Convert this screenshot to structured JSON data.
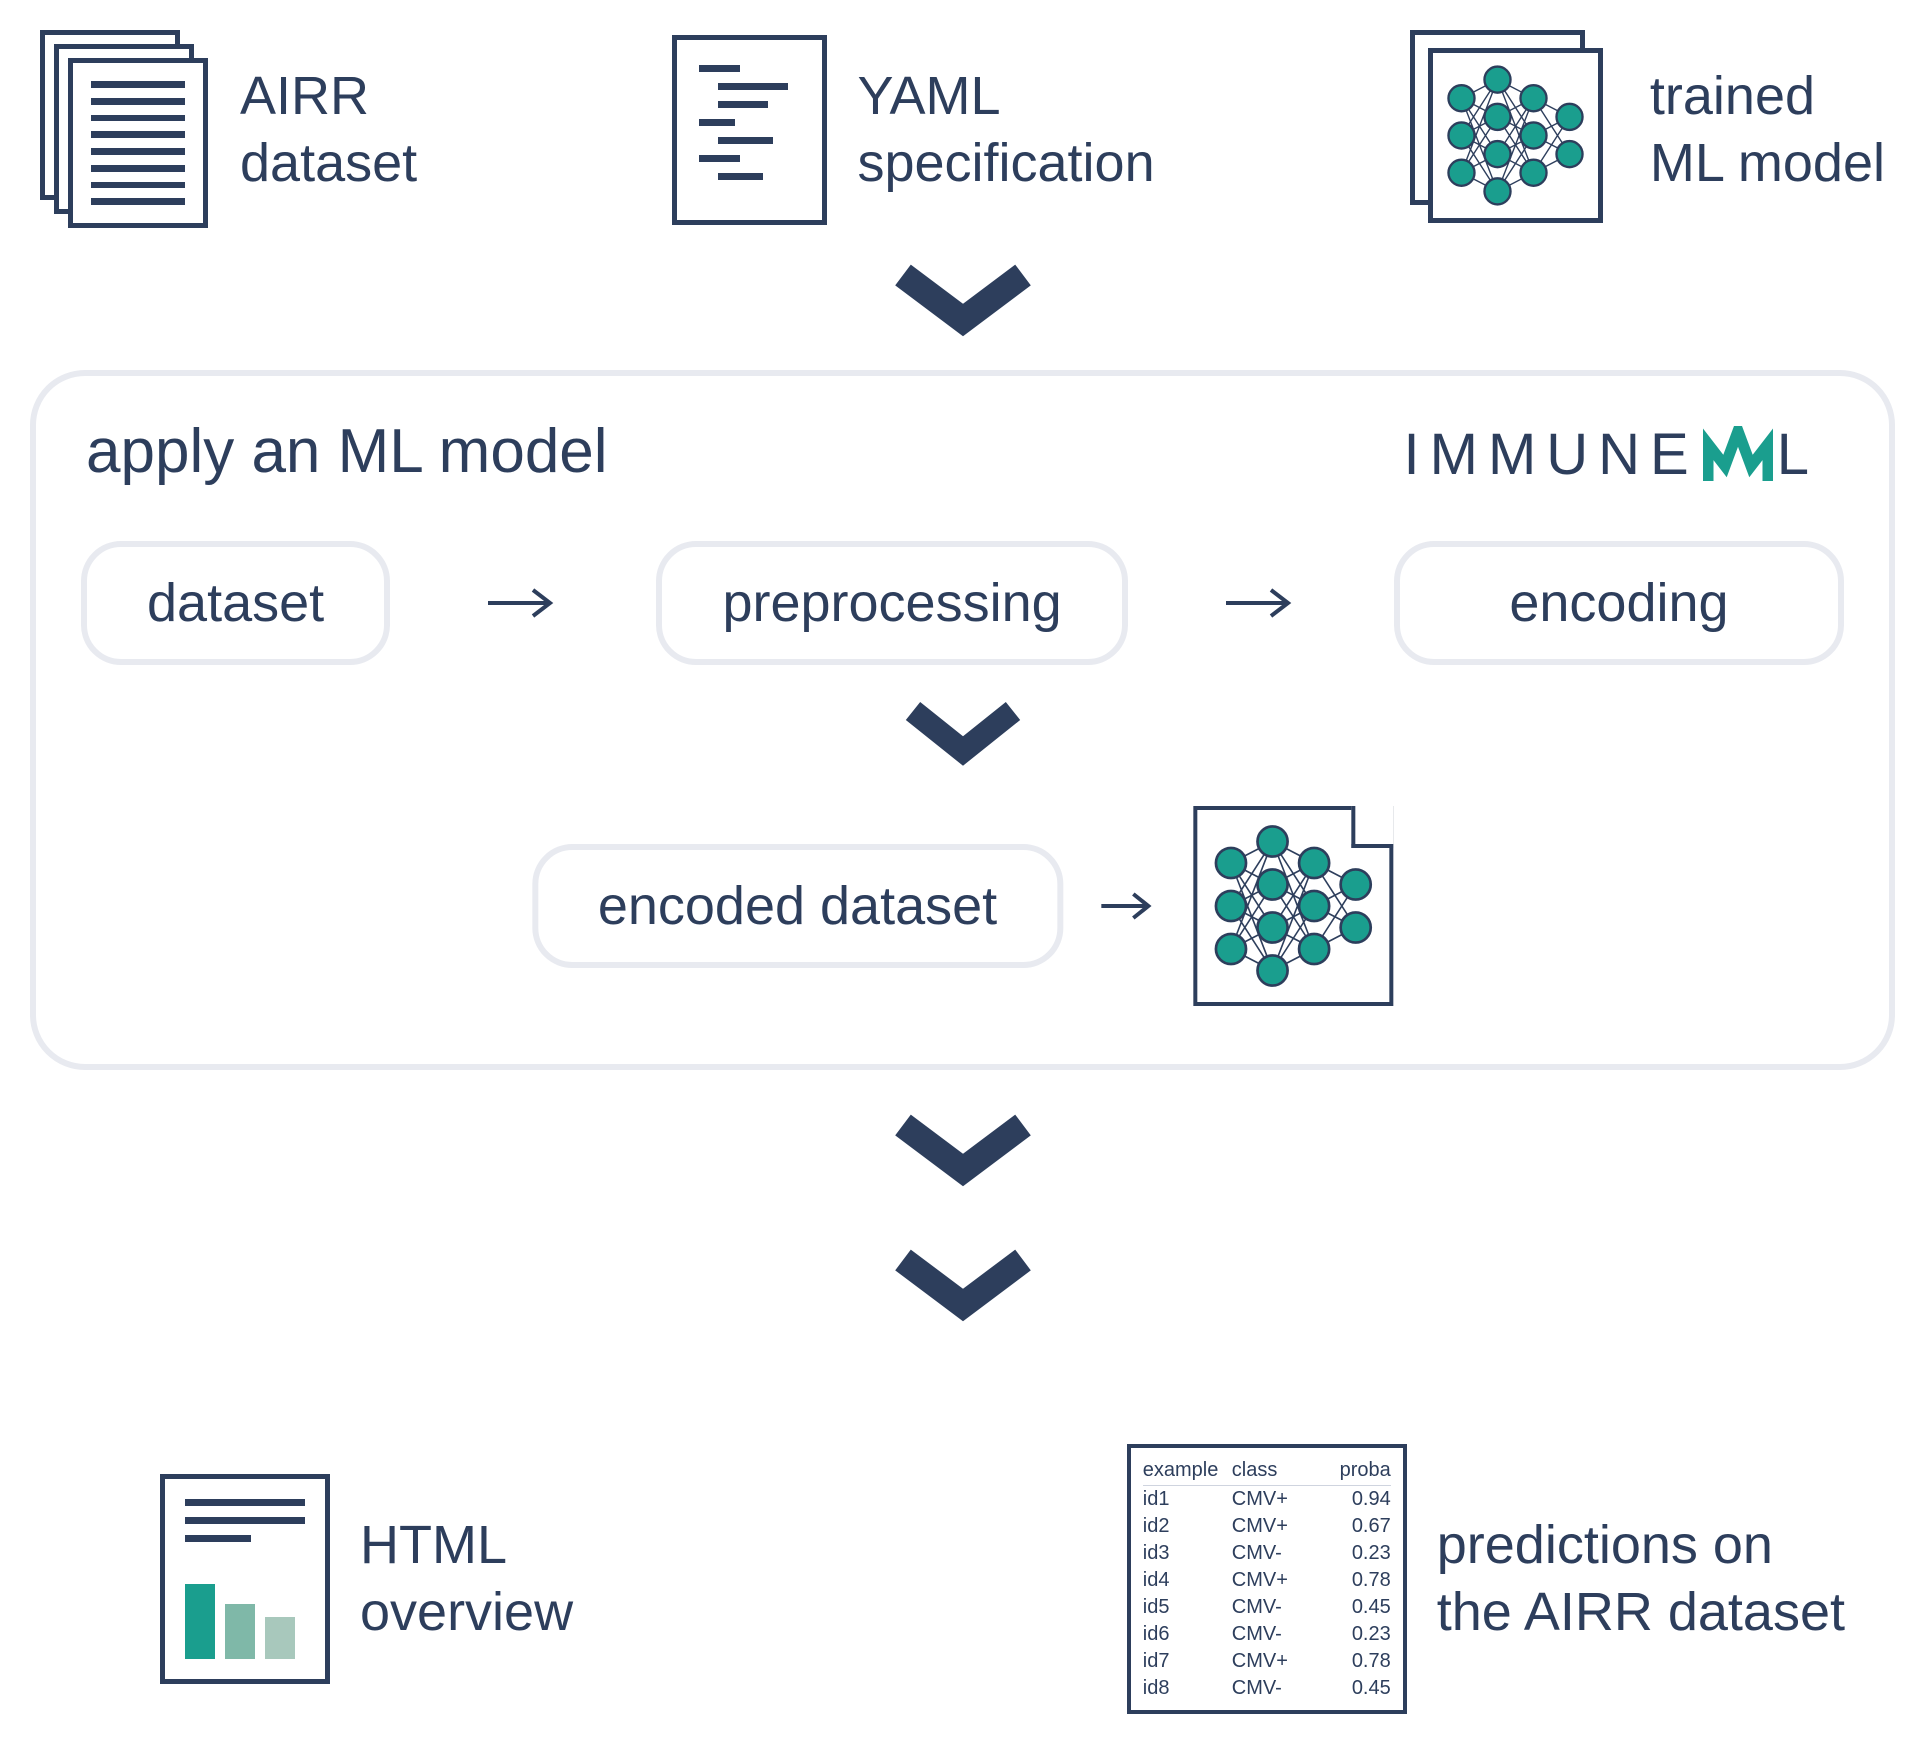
{
  "colors": {
    "dark_navy": "#2d3e5c",
    "teal": "#1a9e8e",
    "light_border": "#e8eaf0",
    "background": "#ffffff",
    "bar_mid": "#7fb8a8",
    "bar_light": "#a8c8bc"
  },
  "inputs": {
    "airr": {
      "line1": "AIRR",
      "line2": "dataset"
    },
    "yaml": {
      "line1": "YAML",
      "line2": "specification"
    },
    "model": {
      "line1": "trained",
      "line2": "ML model"
    }
  },
  "main": {
    "title": "apply an ML model",
    "brand_pre": "Immune",
    "brand_post": "L",
    "pipeline": {
      "step1": "dataset",
      "step2": "preprocessing",
      "step3": "encoding",
      "encoded": "encoded dataset"
    }
  },
  "outputs": {
    "html": {
      "line1": "HTML",
      "line2": "overview"
    },
    "predictions": {
      "line1": "predictions on",
      "line2": "the AIRR dataset"
    }
  },
  "prediction_table": {
    "headers": {
      "c1": "example",
      "c2": "class",
      "c3": "proba"
    },
    "rows": [
      {
        "id": "id1",
        "cls": "CMV+",
        "p": "0.94"
      },
      {
        "id": "id2",
        "cls": "CMV+",
        "p": "0.67"
      },
      {
        "id": "id3",
        "cls": "CMV-",
        "p": "0.23"
      },
      {
        "id": "id4",
        "cls": "CMV+",
        "p": "0.78"
      },
      {
        "id": "id5",
        "cls": "CMV-",
        "p": "0.45"
      },
      {
        "id": "id6",
        "cls": "CMV-",
        "p": "0.23"
      },
      {
        "id": "id7",
        "cls": "CMV+",
        "p": "0.78"
      },
      {
        "id": "id8",
        "cls": "CMV-",
        "p": "0.45"
      }
    ]
  },
  "neural_net": {
    "layers": [
      3,
      4,
      3,
      2
    ],
    "node_color": "#1a9e8e",
    "edge_color": "#2d3e5c",
    "node_radius": 14
  },
  "chart_bars": {
    "heights": [
      75,
      55,
      42
    ],
    "colors": [
      "#1a9e8e",
      "#7fb8a8",
      "#a8c8bc"
    ]
  }
}
